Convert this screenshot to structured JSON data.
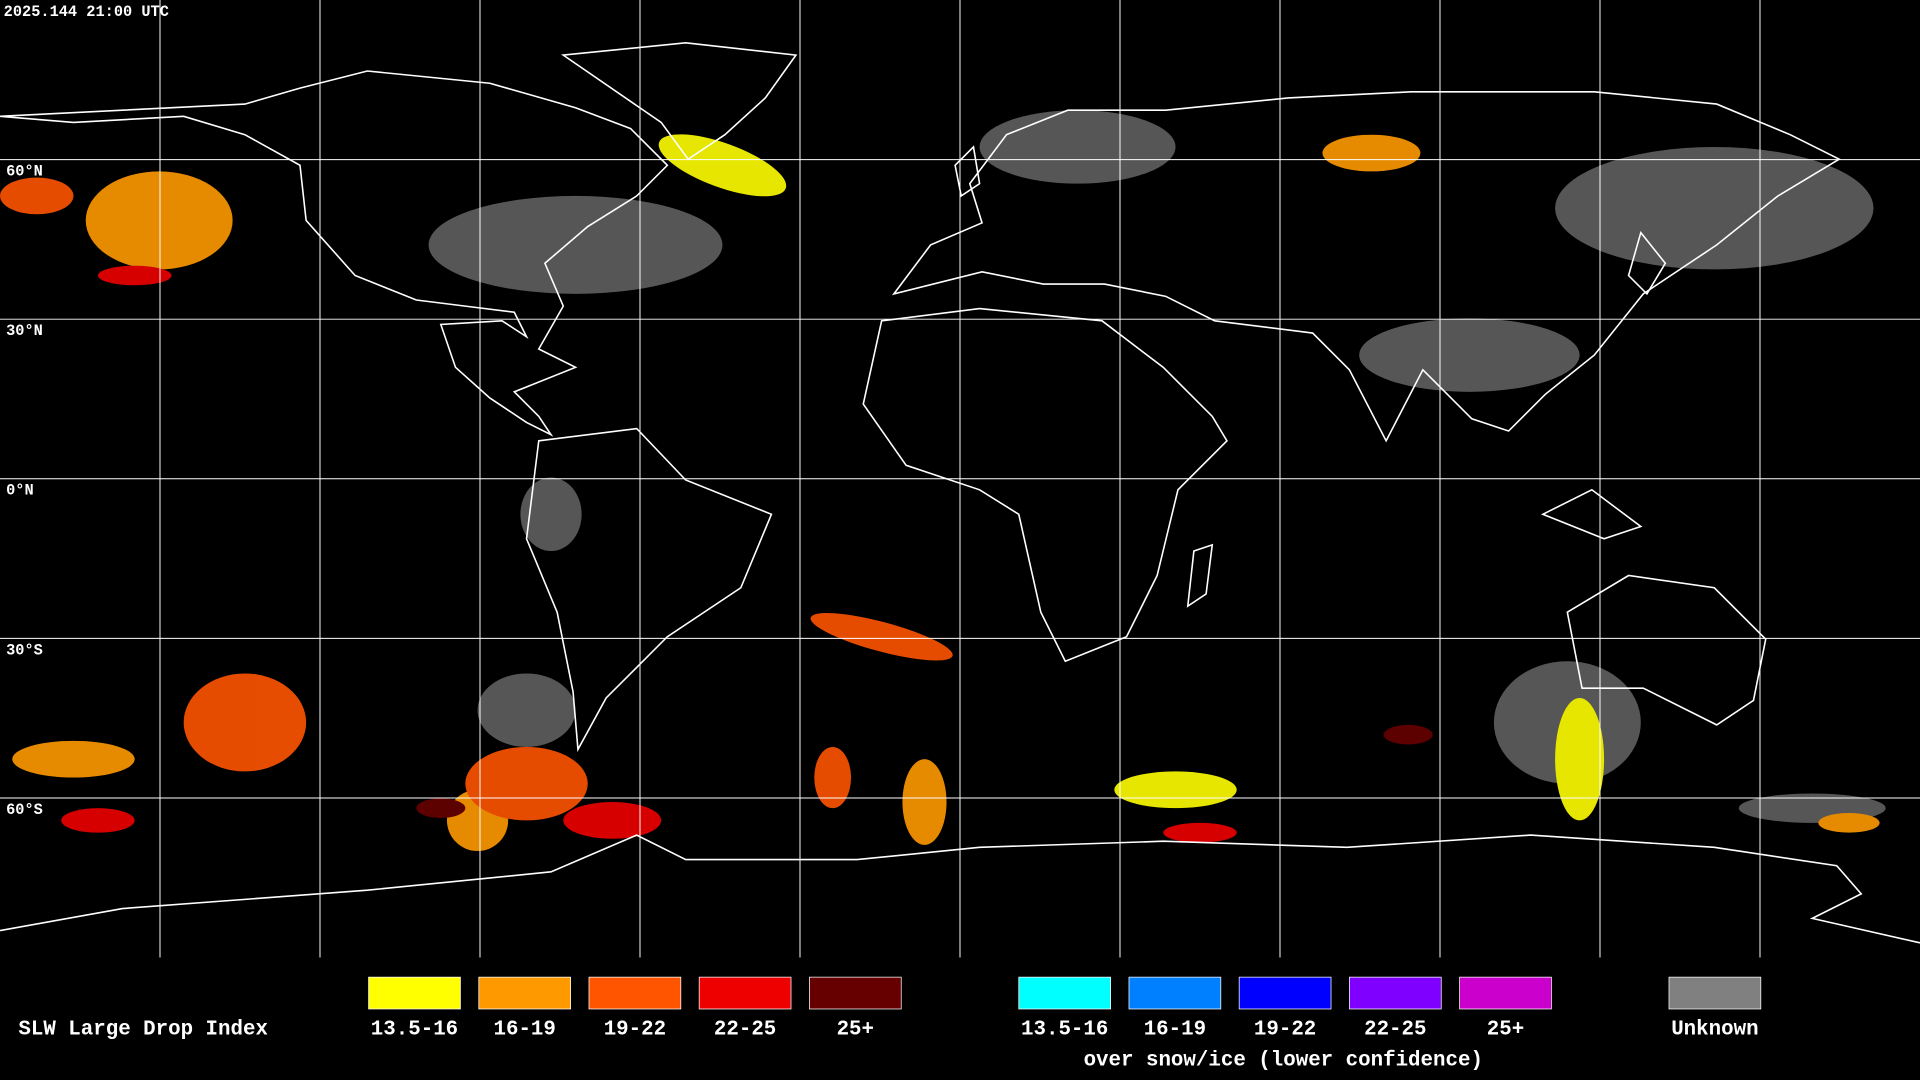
{
  "timestamp": "2025.144 21:00 UTC",
  "grid_labels": [
    "60°N",
    "30°N",
    "0°N",
    "30°S",
    "60°S"
  ],
  "legend": {
    "title": "SLW Large Drop Index",
    "normal": [
      {
        "label": "13.5-16",
        "color": "#ffff00"
      },
      {
        "label": "16-19",
        "color": "#ff9900"
      },
      {
        "label": "19-22",
        "color": "#ff5500"
      },
      {
        "label": "22-25",
        "color": "#ee0000"
      },
      {
        "label": "25+",
        "color": "#660000"
      }
    ],
    "snow_ice": [
      {
        "label": "13.5-16",
        "color": "#00ffff"
      },
      {
        "label": "16-19",
        "color": "#0080ff"
      },
      {
        "label": "19-22",
        "color": "#0000ff"
      },
      {
        "label": "22-25",
        "color": "#8000ff"
      },
      {
        "label": "25+",
        "color": "#cc00cc"
      }
    ],
    "snow_ice_caption": "over snow/ice (lower confidence)",
    "unknown": {
      "label": "Unknown",
      "color": "#808080"
    }
  }
}
